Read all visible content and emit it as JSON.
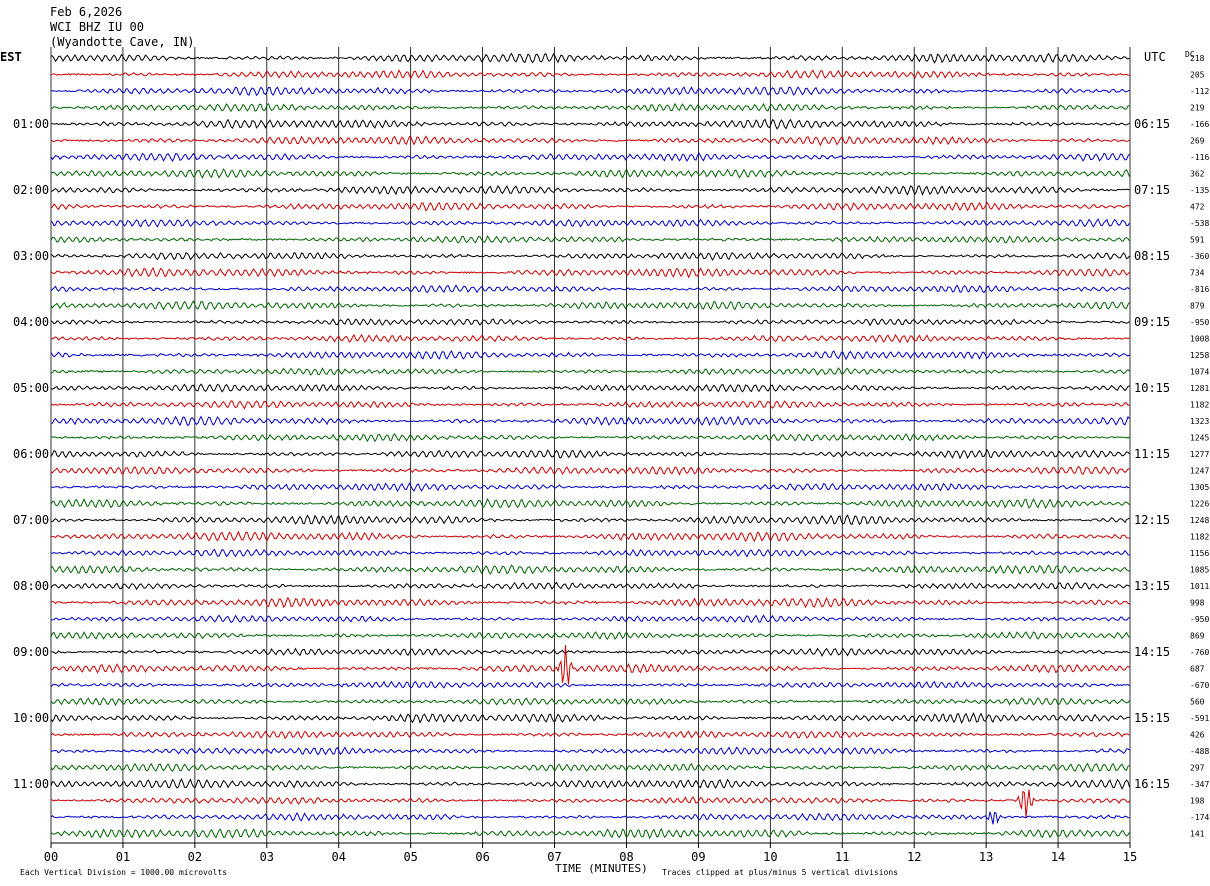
{
  "header": {
    "date": "Feb 6,2026",
    "station": "WCI BHZ IU 00",
    "location": "(Wyandotte Cave, IN)"
  },
  "left_tz": "EST",
  "right_tz": "UTC",
  "dc_label": "DC",
  "footer": {
    "scale_note": "Each Vertical Division = 1000.00 microvolts",
    "xlabel": "TIME (MINUTES)",
    "clip_note": "Traces clipped at plus/minus 5 vertical divisions"
  },
  "colors": {
    "black": "#000000",
    "red": "#cc0000",
    "blue": "#0000cc",
    "green": "#006600",
    "grid": "#000000"
  },
  "chart_data": {
    "type": "line",
    "title": "WCI BHZ IU 00",
    "xlabel": "TIME (MINUTES)",
    "xlim": [
      0,
      15
    ],
    "x_ticks": [
      "00",
      "01",
      "02",
      "03",
      "04",
      "05",
      "06",
      "07",
      "08",
      "09",
      "10",
      "11",
      "12",
      "13",
      "14",
      "15"
    ],
    "trace_minutes": 15,
    "trace_count": 48,
    "trace_color_cycle": [
      "black",
      "red",
      "blue",
      "green"
    ],
    "grid": true,
    "left_hour_labels": [
      "01:00",
      "02:00",
      "03:00",
      "04:00",
      "05:00",
      "06:00",
      "07:00",
      "08:00",
      "09:00",
      "10:00",
      "11:00"
    ],
    "right_hour_labels": [
      "06:15",
      "07:15",
      "08:15",
      "09:15",
      "10:15",
      "11:15",
      "12:15",
      "13:15",
      "14:15",
      "15:15",
      "16:15"
    ],
    "dc_offsets": [
      "218",
      "205",
      "-112",
      "219",
      "-166",
      "269",
      "-116",
      "362",
      "-135",
      "472",
      "-538",
      "591",
      "-360",
      "734",
      "-816",
      "879",
      "-950",
      "1008",
      "1258",
      "1074",
      "1281",
      "1182",
      "1323",
      "1245",
      "1277",
      "1247",
      "1305",
      "1226",
      "1248",
      "1182",
      "1156",
      "1085",
      "1011",
      "998",
      "-950",
      "869",
      "-760",
      "687",
      "-670",
      "560",
      "-591",
      "426",
      "-488",
      "297",
      "-347",
      "198",
      "-174",
      "141"
    ],
    "events": [
      {
        "trace": 37,
        "minute": 7.15,
        "amplitude_divisions": 1.8,
        "color": "red"
      },
      {
        "trace": 45,
        "minute": 13.55,
        "amplitude_divisions": 1.5,
        "color": "red"
      },
      {
        "trace": 46,
        "minute": 13.1,
        "amplitude_divisions": 0.7,
        "color": "blue"
      }
    ]
  }
}
